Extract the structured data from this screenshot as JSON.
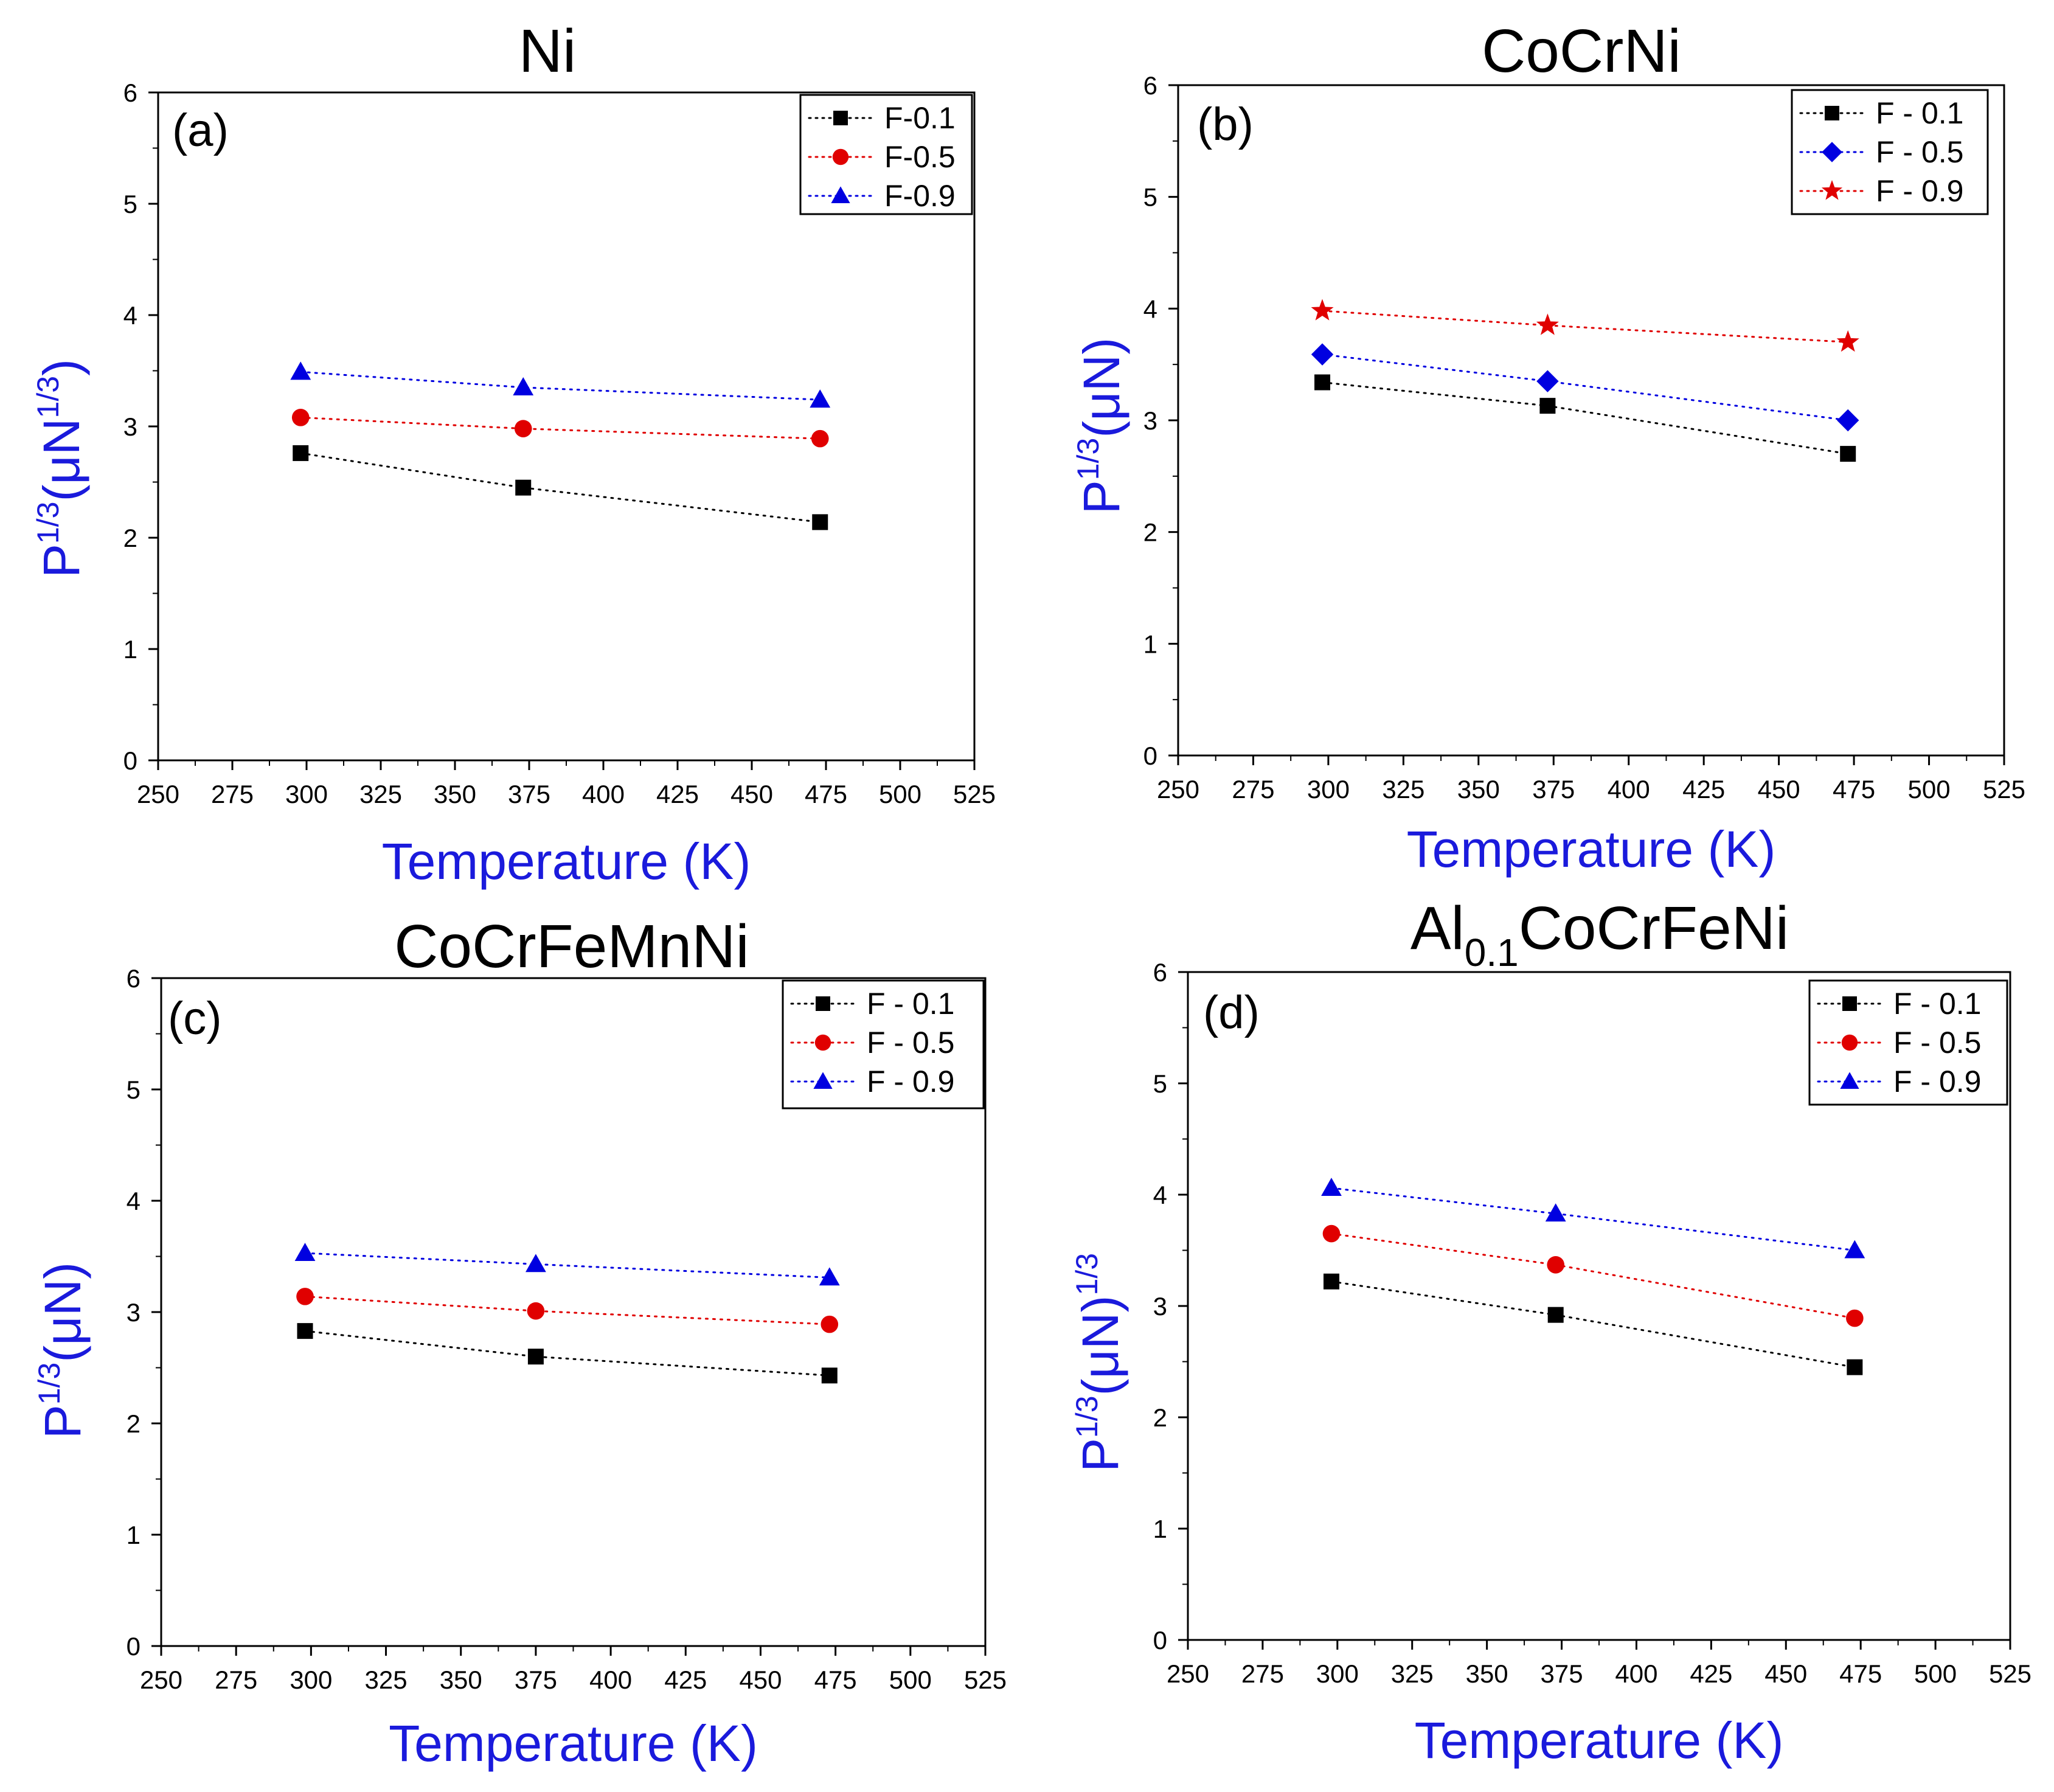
{
  "chart_data": [
    {
      "type": "line",
      "panel": "(a)",
      "title": "Ni",
      "title_sub": "",
      "title_after": "",
      "xlabel": "Temperature (K)",
      "ylabel": "P1/3(μN1/3)",
      "ylabel_parts": [
        "P",
        "1/3",
        "(μN",
        "1/3",
        ")"
      ],
      "xlim": [
        250,
        525
      ],
      "ylim": [
        0,
        6
      ],
      "xticks": [
        250,
        275,
        300,
        325,
        350,
        375,
        400,
        425,
        450,
        475,
        500,
        525
      ],
      "yticks": [
        0,
        1,
        2,
        3,
        4,
        5,
        6
      ],
      "grid": false,
      "legend_position": "top-right",
      "series": [
        {
          "name": "F-0.1",
          "marker": "square",
          "color": "#000000",
          "x": [
            298,
            373,
            473
          ],
          "y": [
            2.76,
            2.45,
            2.14
          ]
        },
        {
          "name": "F-0.5",
          "marker": "circle",
          "color": "#e00000",
          "x": [
            298,
            373,
            473
          ],
          "y": [
            3.08,
            2.98,
            2.89
          ]
        },
        {
          "name": "F-0.9",
          "marker": "triangle",
          "color": "#0000e0",
          "x": [
            298,
            373,
            473
          ],
          "y": [
            3.49,
            3.35,
            3.24
          ]
        }
      ]
    },
    {
      "type": "line",
      "panel": "(b)",
      "title": "CoCrNi",
      "title_sub": "",
      "title_after": "",
      "xlabel": "Temperature (K)",
      "ylabel": "P1/3(μN)",
      "ylabel_parts": [
        "P",
        "1/3",
        "(μN)",
        "",
        ""
      ],
      "xlim": [
        250,
        525
      ],
      "ylim": [
        0,
        6
      ],
      "xticks": [
        250,
        275,
        300,
        325,
        350,
        375,
        400,
        425,
        450,
        475,
        500,
        525
      ],
      "yticks": [
        0,
        1,
        2,
        3,
        4,
        5,
        6
      ],
      "grid": false,
      "legend_position": "top-right",
      "series": [
        {
          "name": "F - 0.1",
          "marker": "square",
          "color": "#000000",
          "x": [
            298,
            373,
            473
          ],
          "y": [
            3.34,
            3.13,
            2.7
          ]
        },
        {
          "name": "F - 0.5",
          "marker": "diamond",
          "color": "#0000e0",
          "x": [
            298,
            373,
            473
          ],
          "y": [
            3.59,
            3.35,
            3.0
          ]
        },
        {
          "name": "F - 0.9",
          "marker": "star",
          "color": "#e00000",
          "x": [
            298,
            373,
            473
          ],
          "y": [
            3.98,
            3.85,
            3.7
          ]
        }
      ]
    },
    {
      "type": "line",
      "panel": "(c)",
      "title": "CoCrFeMnNi",
      "title_sub": "",
      "title_after": "",
      "xlabel": "Temperature (K)",
      "ylabel": "P1/3(μN)",
      "ylabel_parts": [
        "P",
        "1/3",
        "(μN)",
        "",
        ""
      ],
      "xlim": [
        250,
        525
      ],
      "ylim": [
        0,
        6
      ],
      "xticks": [
        250,
        275,
        300,
        325,
        350,
        375,
        400,
        425,
        450,
        475,
        500,
        525
      ],
      "yticks": [
        0,
        1,
        2,
        3,
        4,
        5,
        6
      ],
      "grid": false,
      "legend_position": "top-right",
      "series": [
        {
          "name": "F - 0.1",
          "marker": "square",
          "color": "#000000",
          "x": [
            298,
            375,
            473
          ],
          "y": [
            2.83,
            2.6,
            2.43
          ]
        },
        {
          "name": "F - 0.5",
          "marker": "circle",
          "color": "#e00000",
          "x": [
            298,
            375,
            473
          ],
          "y": [
            3.14,
            3.01,
            2.89
          ]
        },
        {
          "name": "F - 0.9",
          "marker": "triangle",
          "color": "#0000e0",
          "x": [
            298,
            375,
            473
          ],
          "y": [
            3.53,
            3.43,
            3.31
          ]
        }
      ]
    },
    {
      "type": "line",
      "panel": "(d)",
      "title": "Al",
      "title_sub": "0.1",
      "title_after": "CoCrFeNi",
      "xlabel": "Temperature (K)",
      "ylabel": "P1/3(μN)1/3",
      "ylabel_parts": [
        "P",
        "1/3",
        "(μN)",
        "1/3",
        ""
      ],
      "xlim": [
        250,
        525
      ],
      "ylim": [
        0,
        6
      ],
      "xticks": [
        250,
        275,
        300,
        325,
        350,
        375,
        400,
        425,
        450,
        475,
        500,
        525
      ],
      "yticks": [
        0,
        1,
        2,
        3,
        4,
        5,
        6
      ],
      "grid": false,
      "legend_position": "top-right",
      "series": [
        {
          "name": "F - 0.1",
          "marker": "square",
          "color": "#000000",
          "x": [
            298,
            373,
            473
          ],
          "y": [
            3.22,
            2.92,
            2.45
          ]
        },
        {
          "name": "F - 0.5",
          "marker": "circle",
          "color": "#e00000",
          "x": [
            298,
            373,
            473
          ],
          "y": [
            3.65,
            3.37,
            2.89
          ]
        },
        {
          "name": "F - 0.9",
          "marker": "triangle",
          "color": "#0000e0",
          "x": [
            298,
            373,
            473
          ],
          "y": [
            4.06,
            3.83,
            3.5
          ]
        }
      ]
    }
  ]
}
